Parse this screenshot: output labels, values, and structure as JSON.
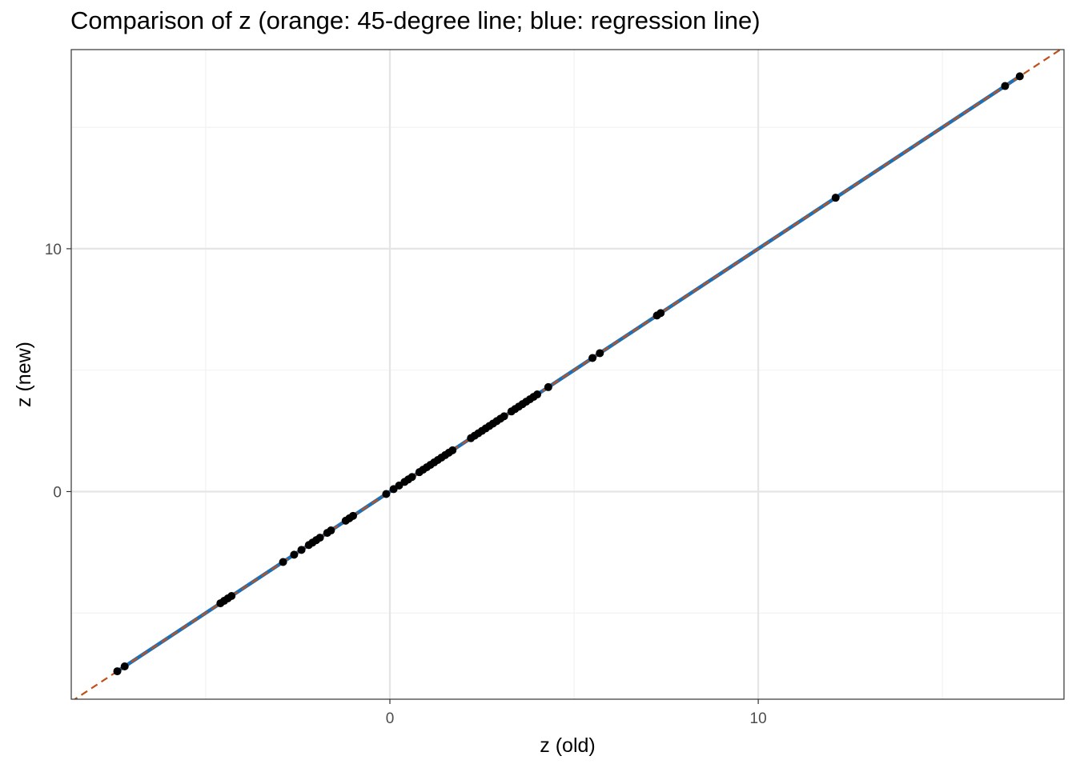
{
  "chart_data": {
    "type": "scatter",
    "title": "Comparison of z (orange: 45-degree line; blue: regression line)",
    "xlabel": "z (old)",
    "ylabel": "z (new)",
    "xlim": [
      -8.65,
      18.3
    ],
    "ylim": [
      -8.55,
      18.2
    ],
    "x_ticks": [
      {
        "value": 0,
        "label": "0"
      },
      {
        "value": 10,
        "label": "10"
      }
    ],
    "y_ticks": [
      {
        "value": 0,
        "label": "0"
      },
      {
        "value": 10,
        "label": "10"
      }
    ],
    "x_minor": [
      -5,
      5,
      15
    ],
    "y_minor": [
      -5,
      5,
      15
    ],
    "grid": true,
    "reference_line": {
      "name": "45-degree line",
      "slope": 1,
      "intercept": 0,
      "color": "#c0501a",
      "style": "dashed"
    },
    "regression_line": {
      "name": "regression line",
      "slope": 1,
      "intercept": 0,
      "color": "#1f6fb4",
      "x_range": [
        -7.4,
        17.1
      ]
    },
    "points": {
      "x": [
        -7.4,
        -7.2,
        -4.6,
        -4.5,
        -4.4,
        -4.3,
        -2.9,
        -2.6,
        -2.4,
        -2.2,
        -2.1,
        -2.0,
        -1.9,
        -1.7,
        -1.6,
        -1.2,
        -1.1,
        -1.0,
        -0.1,
        0.1,
        0.25,
        0.4,
        0.5,
        0.6,
        0.8,
        0.9,
        1.0,
        1.1,
        1.2,
        1.3,
        1.4,
        1.5,
        1.6,
        1.7,
        2.2,
        2.3,
        2.4,
        2.5,
        2.6,
        2.7,
        2.8,
        2.9,
        3.0,
        3.1,
        3.3,
        3.4,
        3.5,
        3.6,
        3.7,
        3.8,
        3.9,
        4.0,
        4.3,
        5.5,
        5.7,
        7.25,
        7.35,
        12.1,
        16.7,
        17.1
      ],
      "y": [
        -7.4,
        -7.2,
        -4.6,
        -4.5,
        -4.4,
        -4.3,
        -2.9,
        -2.6,
        -2.4,
        -2.2,
        -2.1,
        -2.0,
        -1.9,
        -1.7,
        -1.6,
        -1.2,
        -1.1,
        -1.0,
        -0.1,
        0.1,
        0.25,
        0.4,
        0.5,
        0.6,
        0.8,
        0.9,
        1.0,
        1.1,
        1.2,
        1.3,
        1.4,
        1.5,
        1.6,
        1.7,
        2.2,
        2.3,
        2.4,
        2.5,
        2.6,
        2.7,
        2.8,
        2.9,
        3.0,
        3.1,
        3.3,
        3.4,
        3.5,
        3.6,
        3.7,
        3.8,
        3.9,
        4.0,
        4.3,
        5.5,
        5.7,
        7.25,
        7.35,
        12.1,
        16.7,
        17.1
      ],
      "color": "#000000"
    },
    "colors": {
      "panel_border": "#333333",
      "grid_major": "#e5e5e5",
      "grid_minor": "#f2f2f2",
      "tick_text": "#4d4d4d"
    }
  }
}
